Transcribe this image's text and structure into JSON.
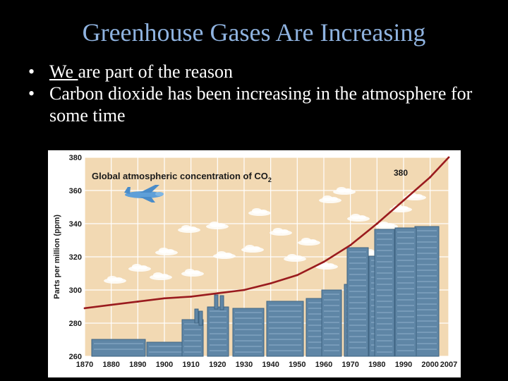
{
  "slide": {
    "title": "Greenhouse Gases Are Increasing",
    "bullets": [
      {
        "marker": "•",
        "emph": "We ",
        "text": "are part of the reason"
      },
      {
        "marker": "•",
        "emph": "",
        "text": "Carbon dioxide has been increasing in the atmosphere for some time"
      }
    ]
  },
  "colors": {
    "title": "#8fb3e0",
    "background": "#000000",
    "plot_bg": "#f2d9b3",
    "curve": "#9a1b1e",
    "buildings": "#5f86a6"
  },
  "chart_data": {
    "type": "line",
    "title": "Global atmospheric concentration of CO",
    "title_subscript": "2",
    "ylabel": "Parts per million (ppm)",
    "xlabel": "",
    "x": [
      1870,
      1880,
      1890,
      1900,
      1910,
      1920,
      1930,
      1940,
      1950,
      1960,
      1970,
      1980,
      1990,
      2000,
      2007
    ],
    "x_tick_labels": [
      "1870",
      "1880",
      "1890",
      "1900",
      "1910",
      "1920",
      "1930",
      "1940",
      "1950",
      "1960",
      "1970",
      "1980",
      "1990",
      "2000",
      "2007"
    ],
    "y_ticks": [
      260,
      280,
      300,
      320,
      340,
      360,
      380
    ],
    "y_tick_labels": [
      "260",
      "280",
      "300",
      "320",
      "340",
      "360",
      "380"
    ],
    "xlim": [
      1870,
      2007
    ],
    "ylim": [
      260,
      380
    ],
    "series": [
      {
        "values": [
          289,
          291,
          293,
          295,
          296,
          298,
          300,
          304,
          309,
          317,
          327,
          340,
          354,
          368,
          380
        ]
      }
    ],
    "annotations": [
      {
        "text": "380",
        "x": 2007,
        "y": 380
      }
    ],
    "grid": true,
    "legend": "none"
  }
}
